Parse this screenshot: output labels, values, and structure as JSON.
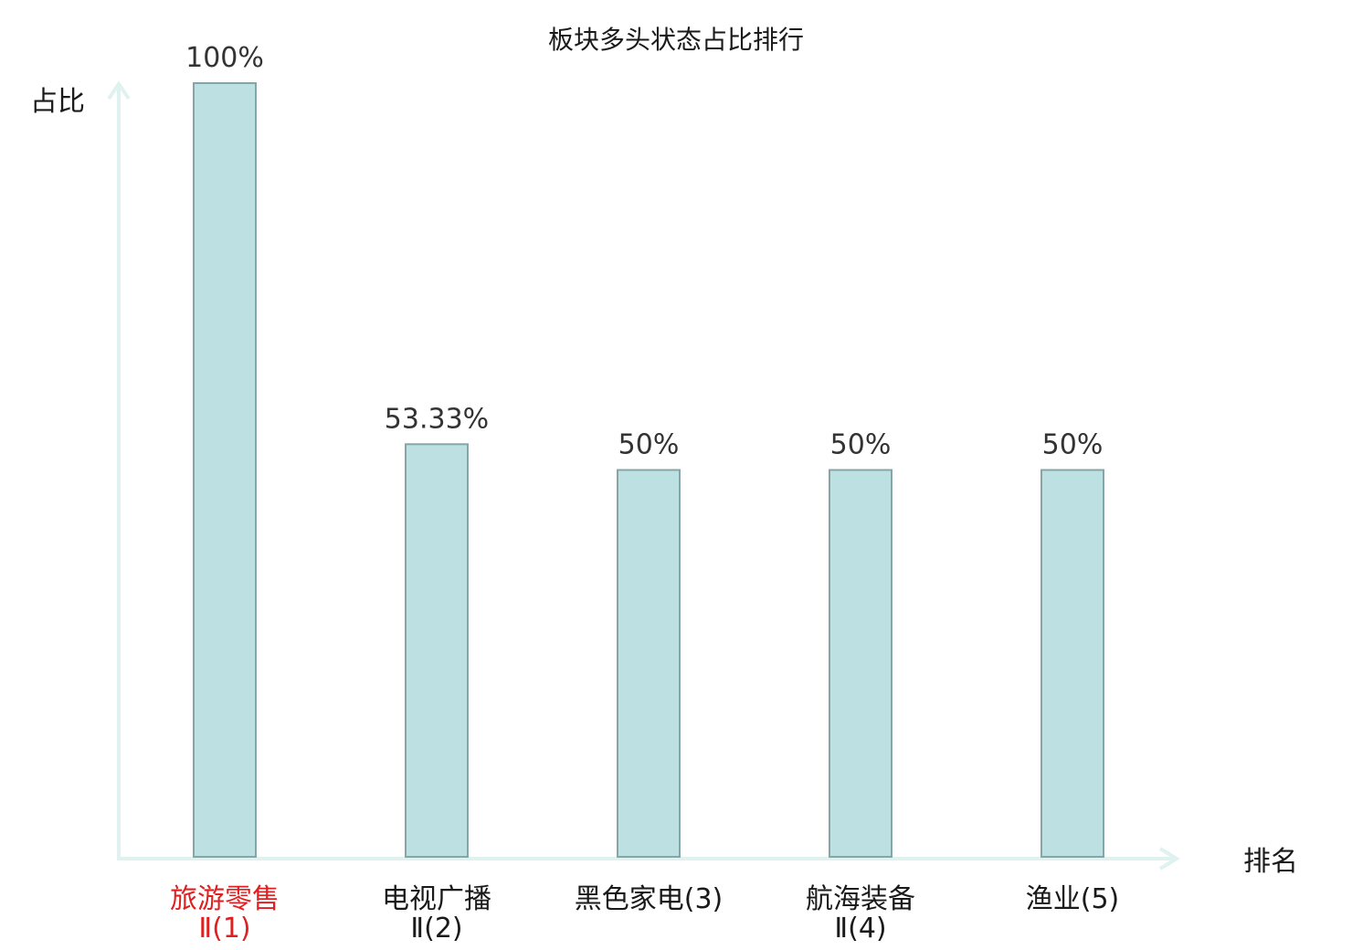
{
  "chart_data": {
    "type": "bar",
    "title": "板块多头状态占比排行",
    "xlabel": "排名",
    "ylabel": "占比",
    "ylim": [
      0,
      100
    ],
    "grid": false,
    "categories": [
      {
        "line1": "旅游零售",
        "line2": "Ⅱ(1)",
        "highlight": true
      },
      {
        "line1": "电视广播",
        "line2": "Ⅱ(2)",
        "highlight": false
      },
      {
        "line1": "黑色家电(3)",
        "line2": "",
        "highlight": false
      },
      {
        "line1": "航海装备",
        "line2": "Ⅱ(4)",
        "highlight": false
      },
      {
        "line1": "渔业(5)",
        "line2": "",
        "highlight": false
      }
    ],
    "values": [
      100,
      53.33,
      50,
      50,
      50
    ],
    "value_labels": [
      "100%",
      "53.33%",
      "50%",
      "50%",
      "50%"
    ],
    "colors": {
      "bar_fill": "#bde0e2",
      "bar_stroke": "#86a5a5",
      "axis": "#dff2ef",
      "highlight_text": "#e02020",
      "text": "#1a1a1a"
    }
  }
}
